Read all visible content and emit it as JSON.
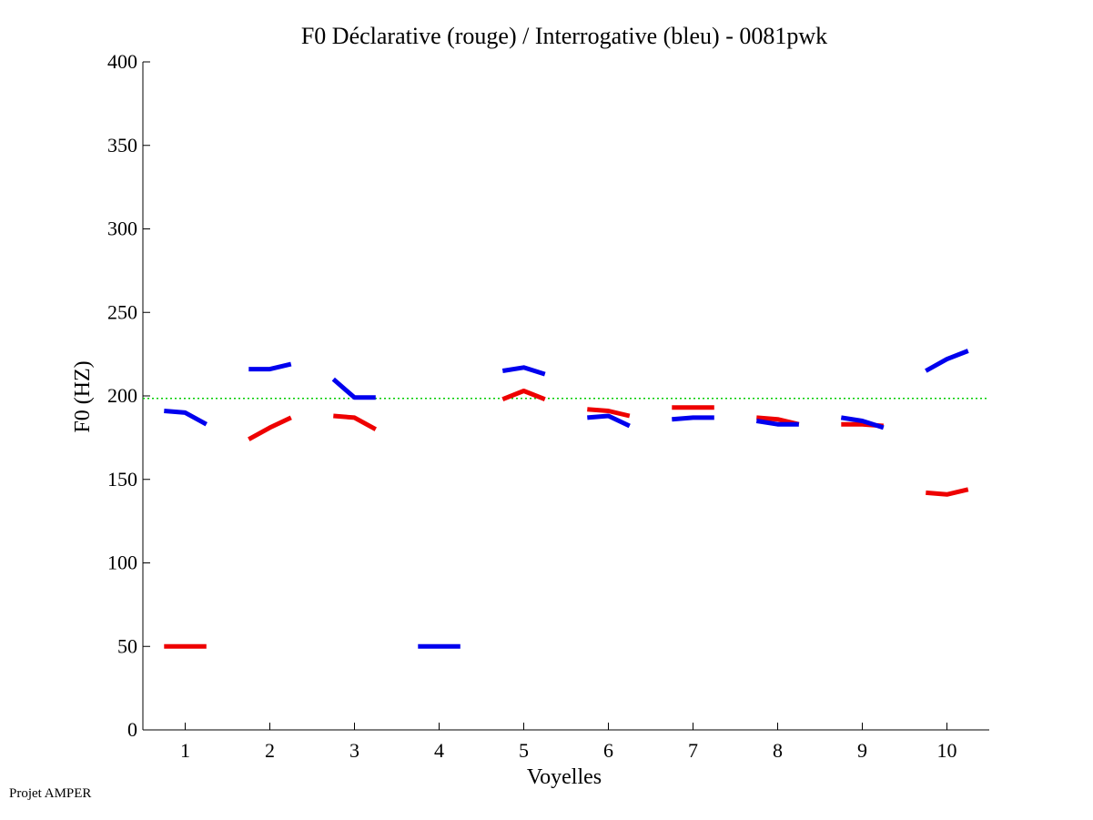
{
  "footer": {
    "credit": "Projet AMPER"
  },
  "chart_data": {
    "type": "line",
    "title": "F0 Déclarative (rouge) / Interrogative (bleu) - 0081pwk",
    "xlabel": "Voyelles",
    "ylabel": "F0 (HZ)",
    "xlim": [
      0.5,
      10.5
    ],
    "ylim": [
      0,
      400
    ],
    "xticks": [
      1,
      2,
      3,
      4,
      5,
      6,
      7,
      8,
      9,
      10
    ],
    "yticks": [
      0,
      50,
      100,
      150,
      200,
      250,
      300,
      350,
      400
    ],
    "grid": false,
    "reference_line": {
      "y": 198.5,
      "color": "#00cc00",
      "style": "dotted"
    },
    "series": [
      {
        "name": "Déclarative (rouge)",
        "color": "#ee0000",
        "segments": [
          {
            "vowel": 1,
            "values": [
              50,
              50,
              50
            ]
          },
          {
            "vowel": 2,
            "values": [
              174,
              181,
              187
            ]
          },
          {
            "vowel": 3,
            "values": [
              188,
              187,
              180
            ]
          },
          {
            "vowel": 5,
            "values": [
              198,
              203,
              198
            ]
          },
          {
            "vowel": 6,
            "values": [
              192,
              191,
              188
            ]
          },
          {
            "vowel": 7,
            "values": [
              193,
              193,
              193
            ]
          },
          {
            "vowel": 8,
            "values": [
              187,
              186,
              183
            ]
          },
          {
            "vowel": 9,
            "values": [
              183,
              183,
              182
            ]
          },
          {
            "vowel": 10,
            "values": [
              142,
              141,
              144
            ]
          }
        ]
      },
      {
        "name": "Interrogative (bleu)",
        "color": "#0000ee",
        "segments": [
          {
            "vowel": 1,
            "values": [
              191,
              190,
              183
            ]
          },
          {
            "vowel": 2,
            "values": [
              216,
              216,
              219
            ]
          },
          {
            "vowel": 3,
            "values": [
              210,
              199,
              199
            ]
          },
          {
            "vowel": 4,
            "values": [
              50,
              50,
              50
            ]
          },
          {
            "vowel": 5,
            "values": [
              215,
              217,
              213
            ]
          },
          {
            "vowel": 6,
            "values": [
              187,
              188,
              182
            ]
          },
          {
            "vowel": 7,
            "values": [
              186,
              187,
              187
            ]
          },
          {
            "vowel": 8,
            "values": [
              185,
              183,
              183
            ]
          },
          {
            "vowel": 9,
            "values": [
              187,
              185,
              181
            ]
          },
          {
            "vowel": 10,
            "values": [
              215,
              222,
              227
            ]
          }
        ]
      }
    ]
  }
}
